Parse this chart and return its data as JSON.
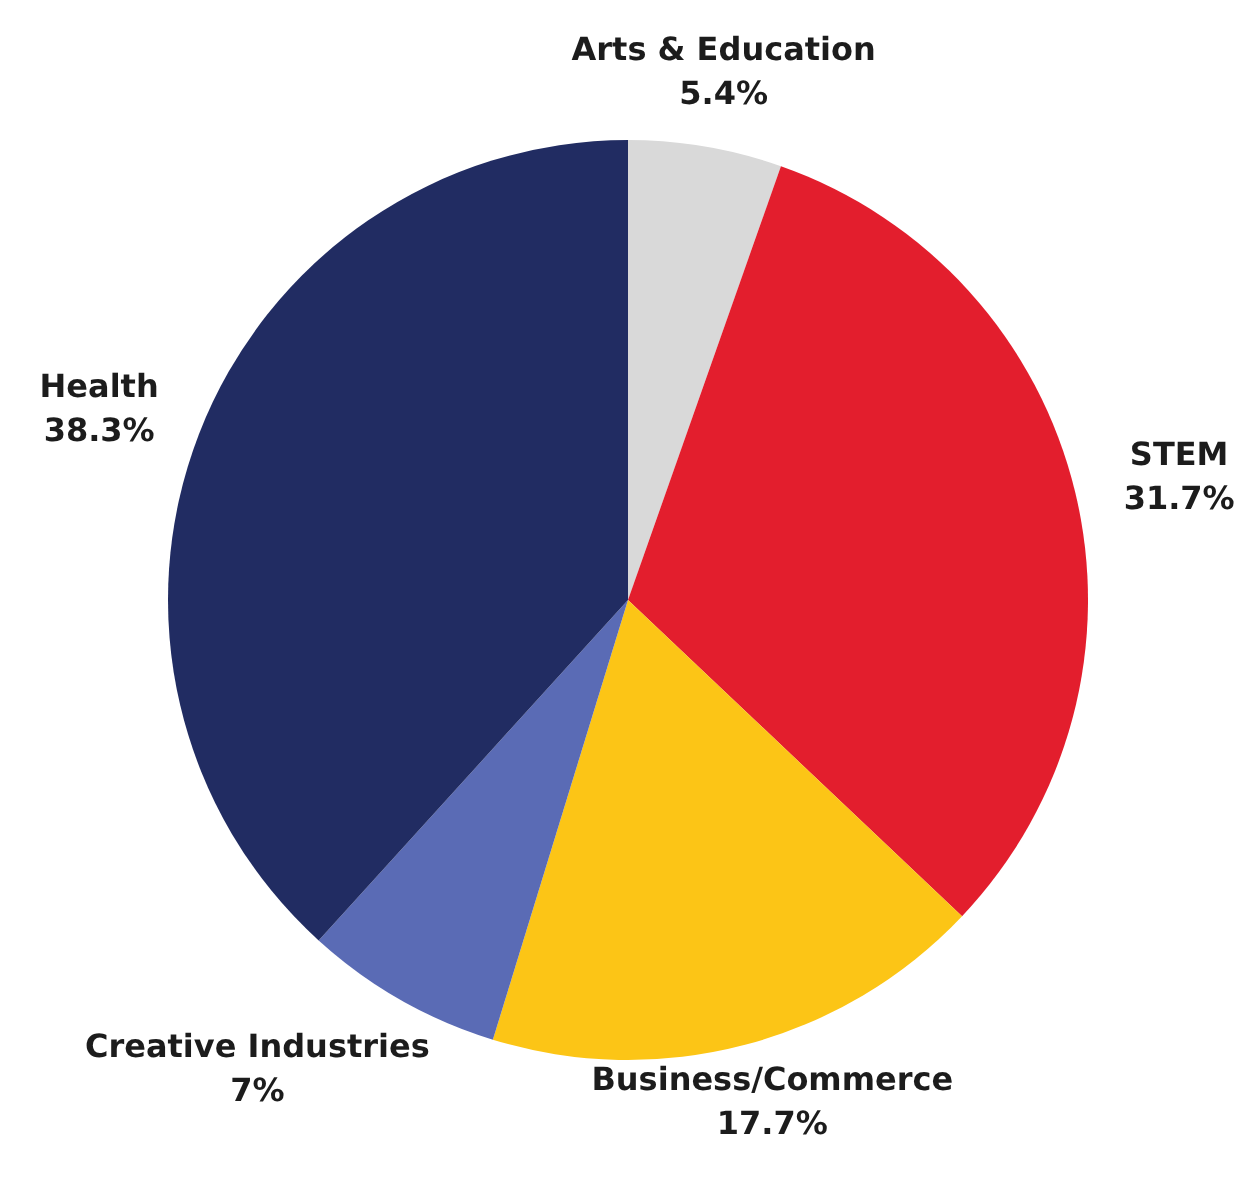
{
  "chart_data": {
    "type": "pie",
    "categories": [
      "Arts & Education",
      "STEM",
      "Business/Commerce",
      "Creative Industries",
      "Health"
    ],
    "values": [
      5.4,
      31.7,
      17.7,
      7,
      38.3
    ],
    "value_labels": [
      "5.4%",
      "31.7%",
      "17.7%",
      "7%",
      "38.3%"
    ],
    "colors": [
      "#d9d9d9",
      "#e31e2d",
      "#fcc516",
      "#5a6bb5",
      "#212c62"
    ]
  }
}
